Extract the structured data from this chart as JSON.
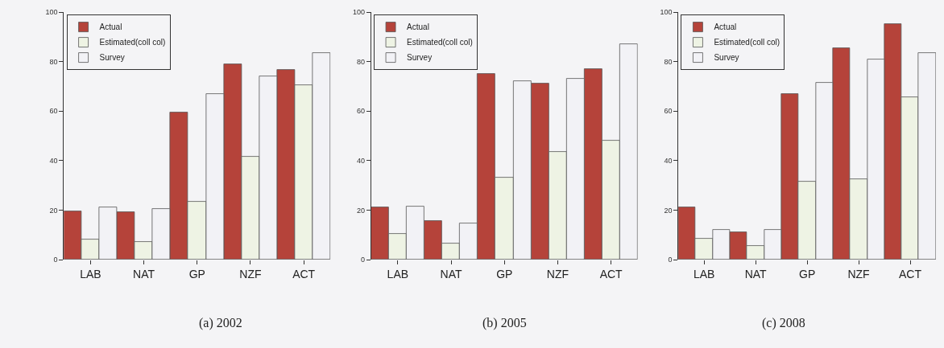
{
  "chart_data": [
    {
      "type": "bar",
      "title": "(a) 2002",
      "categories": [
        "LAB",
        "NAT",
        "GP",
        "NZF",
        "ACT"
      ],
      "ylim": [
        0,
        100
      ],
      "yticks": [
        0,
        20,
        40,
        60,
        80,
        100
      ],
      "grid": false,
      "legend": "top left",
      "series": [
        {
          "name": "Actual",
          "color": "#b5433a",
          "values": [
            19.5,
            19,
            59.5,
            79,
            76.5
          ]
        },
        {
          "name": "Estimated(coll col)",
          "color": "#eef3e4",
          "values": [
            8,
            7,
            23.5,
            41.5,
            70.5
          ]
        },
        {
          "name": "Survey",
          "color": "#f2f2f6",
          "values": [
            21,
            20.5,
            67,
            74,
            83.5
          ]
        }
      ]
    },
    {
      "type": "bar",
      "title": "(b) 2005",
      "categories": [
        "LAB",
        "NAT",
        "GP",
        "NZF",
        "ACT"
      ],
      "ylim": [
        0,
        100
      ],
      "yticks": [
        0,
        20,
        40,
        60,
        80,
        100
      ],
      "grid": false,
      "legend": "top left",
      "series": [
        {
          "name": "Actual",
          "color": "#b5433a",
          "values": [
            21,
            15.5,
            75,
            71,
            77
          ]
        },
        {
          "name": "Estimated(coll col)",
          "color": "#eef3e4",
          "values": [
            10.5,
            6.5,
            33,
            43.5,
            48
          ]
        },
        {
          "name": "Survey",
          "color": "#f2f2f6",
          "values": [
            21.5,
            14.5,
            72,
            73,
            87
          ]
        }
      ]
    },
    {
      "type": "bar",
      "title": "(c) 2008",
      "categories": [
        "LAB",
        "NAT",
        "GP",
        "NZF",
        "ACT"
      ],
      "ylim": [
        0,
        100
      ],
      "yticks": [
        0,
        20,
        40,
        60,
        80,
        100
      ],
      "grid": false,
      "legend": "top left",
      "series": [
        {
          "name": "Actual",
          "color": "#b5433a",
          "values": [
            21,
            11,
            67,
            85.5,
            95
          ]
        },
        {
          "name": "Estimated(coll col)",
          "color": "#eef3e4",
          "values": [
            8.5,
            5.5,
            31.5,
            32.5,
            65.5
          ]
        },
        {
          "name": "Survey",
          "color": "#f2f2f6",
          "values": [
            12,
            12,
            71.5,
            81,
            83.5
          ]
        }
      ]
    }
  ]
}
